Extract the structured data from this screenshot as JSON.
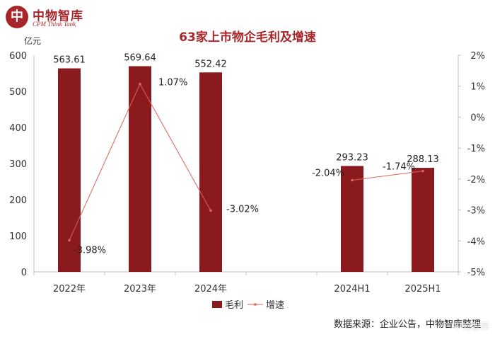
{
  "brand": {
    "seal_char": "中",
    "name_cn": "中物智库",
    "name_en": "CPM Think Tank"
  },
  "colors": {
    "bar": "#8b1a1f",
    "line": "#e0605a",
    "title": "#a8262b"
  },
  "chart_data": {
    "type": "bar",
    "title": "63家上市物企毛利及增速",
    "categories": [
      "2022年",
      "2023年",
      "2024年",
      "",
      "2024H1",
      "2025H1"
    ],
    "series": [
      {
        "name": "毛利",
        "type": "bar",
        "axis": "left",
        "values": [
          563.61,
          569.64,
          552.42,
          null,
          293.23,
          288.13
        ],
        "labels": [
          "563.61",
          "569.64",
          "552.42",
          "",
          "293.23",
          "288.13"
        ]
      },
      {
        "name": "增速",
        "type": "line",
        "axis": "right",
        "segments": [
          [
            0,
            1,
            2
          ],
          [
            4,
            5
          ]
        ],
        "values": [
          -3.98,
          1.07,
          -3.02,
          null,
          -2.04,
          -1.74
        ],
        "labels": [
          "-3.98%",
          "1.07%",
          "-3.02%",
          "",
          "-2.04%",
          "-1.74%"
        ]
      }
    ],
    "y_left": {
      "label": "亿元",
      "min": 0,
      "max": 600,
      "ticks": [
        0,
        100,
        200,
        300,
        400,
        500,
        600
      ],
      "tick_labels": [
        "0",
        "100",
        "200",
        "300",
        "400",
        "500",
        "600"
      ]
    },
    "y_right": {
      "min": -5,
      "max": 2,
      "ticks": [
        2,
        1,
        0,
        -1,
        -2,
        -3,
        -4,
        -5
      ],
      "tick_labels": [
        "2%",
        "1%",
        "0%",
        "-1%",
        "-2%",
        "-3%",
        "-4%",
        "-5%"
      ]
    },
    "legend": {
      "placement": "bottom",
      "items": [
        "毛利",
        "增速"
      ]
    },
    "grid": false
  },
  "source_text": "数据来源：企业公告，中物智库整理",
  "watermark_text": "中物智库"
}
